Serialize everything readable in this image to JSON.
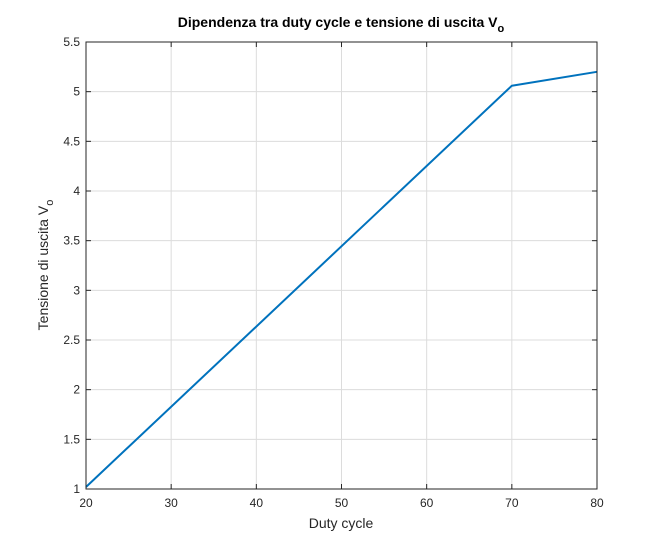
{
  "chart_data": {
    "type": "line",
    "title": "Dipendenza tra duty cycle e tensione di uscita V",
    "title_subscript": "o",
    "xlabel": "Duty cycle",
    "ylabel": "Tensione di uscita V",
    "ylabel_subscript": "o",
    "xlim": [
      20,
      80
    ],
    "ylim": [
      1,
      5.5
    ],
    "xticks": [
      "20",
      "30",
      "40",
      "50",
      "60",
      "70",
      "80"
    ],
    "yticks": [
      "1",
      "1.5",
      "2",
      "2.5",
      "3",
      "3.5",
      "4",
      "4.5",
      "5",
      "5.5"
    ],
    "grid": true,
    "series": [
      {
        "color": "#0072BD",
        "x": [
          20,
          70,
          80
        ],
        "y": [
          1.02,
          5.06,
          5.2
        ]
      }
    ]
  }
}
